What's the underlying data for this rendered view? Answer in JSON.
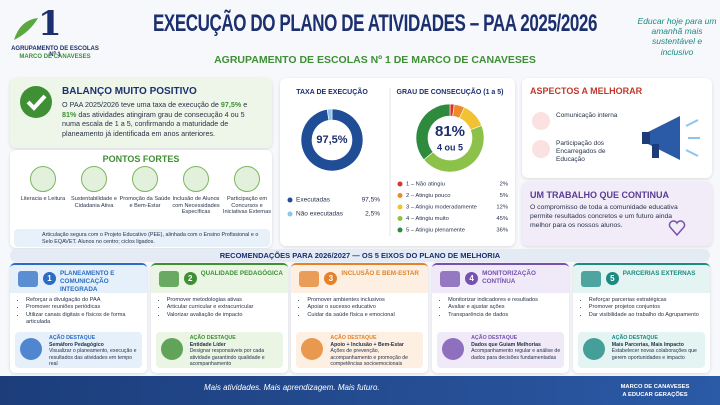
{
  "header": {
    "logo_number": "1",
    "logo_line1": "AGRUPAMENTO DE ESCOLAS Nº 1",
    "logo_line2": "MARCO DE CANAVESES",
    "title": "EXECUÇÃO DO PLANO DE ATIVIDADES – PAA 2025/2026",
    "subtitle": "AGRUPAMENTO DE ESCOLAS Nº 1 DE MARCO DE CANAVESES",
    "slogan": "Educar hoje para um amanhã mais sustentável e inclusivo"
  },
  "summary": {
    "title": "BALANÇO MUITO POSITIVO",
    "text": [
      "O PAA 2025/2026 teve uma taxa de execução de ",
      "97,5%",
      " e ",
      "81%",
      " das atividades atingiram grau de consecução 4 ou 5 numa escala de 1 a 5, confirmando a maturidade de planeamento já identificada em anos anteriores."
    ]
  },
  "strengths": {
    "title": "PONTOS FORTES",
    "items": [
      "Literacia e Leitura",
      "Sustentabilidade e Cidadania Ativa",
      "Promoção da Saúde e Bem-Estar",
      "Inclusão de Alunos com Necessidades Específicas",
      "Participação em Concursos e Iniciativas Externas"
    ],
    "note": "Articulação segura com o Projeto Educativo (PEE), alinhada com o Ensino Profissional e o Selo EQAVET. Alunos no centro; ciclos ligados."
  },
  "chart_data": [
    {
      "type": "pie",
      "title": "TAXA DE EXECUÇÃO",
      "categories": [
        "Executadas",
        "Não executadas"
      ],
      "values": [
        97.5,
        2.5
      ],
      "value_labels": [
        "97,5%",
        "2,5%"
      ],
      "colors": [
        "#1f4e96",
        "#8cc4ec"
      ]
    },
    {
      "type": "pie",
      "title": "GRAU DE CONSECUÇÃO (1 a 5)",
      "center_label": "81%",
      "center_sublabel": "4 ou 5",
      "categories": [
        "1 – Não atingiu",
        "2 – Atingiu pouco",
        "3 – Atingiu moderadamente",
        "4 – Atingiu muito",
        "5 – Atingiu plenamente"
      ],
      "values": [
        2,
        5,
        12,
        45,
        36
      ],
      "value_labels": [
        "2%",
        "5%",
        "12%",
        "45%",
        "36%"
      ],
      "colors": [
        "#d9342b",
        "#ef8a2a",
        "#f1c232",
        "#8cc24a",
        "#2e8b3e"
      ]
    }
  ],
  "improvements": {
    "title": "ASPECTOS A MELHORAR",
    "items": [
      "Comunicação interna",
      "Participação dos Encarregados de Educação"
    ]
  },
  "continuity": {
    "title": "UM TRABALHO QUE CONTINUA",
    "text": "O compromisso de toda a comunidade educativa permite resultados concretos e um futuro ainda melhor para os nossos alunos."
  },
  "recommendations": {
    "title": "RECOMENDAÇÕES PARA 2026/2027 — OS 5 EIXOS DO PLANO DE MELHORIA",
    "cards": [
      {
        "number": "1",
        "title": "PLANEAMENTO E COMUNICAÇÃO INTEGRADA",
        "color": "#2b6cc4",
        "bg": "#e6f0fb",
        "items": [
          "Reforçar a divulgação do PAA",
          "Promover reuniões periódicas",
          "Utilizar canais digitais e físicos de forma articulada"
        ],
        "action_label": "AÇÃO DESTAQUE",
        "action_title": "Semáforo Pedagógico",
        "action_text": "Visualizar o planeamento, execução e resultados das atividades em tempo real"
      },
      {
        "number": "2",
        "title": "QUALIDADE PEDAGÓGICA",
        "color": "#3f8f35",
        "bg": "#eaf5e4",
        "items": [
          "Promover metodologias ativas",
          "Articular curricular e extracurricular",
          "Valorizar avaliação de impacto"
        ],
        "action_label": "AÇÃO DESTAQUE",
        "action_title": "Entidade Líder",
        "action_text": "Designar responsáveis por cada atividade garantindo qualidade e acompanhamento"
      },
      {
        "number": "3",
        "title": "INCLUSÃO E BEM-ESTAR",
        "color": "#e3822a",
        "bg": "#fdf0e2",
        "items": [
          "Promover ambientes inclusivos",
          "Apoiar o sucesso educativo",
          "Cuidar da saúde física e emocional"
        ],
        "action_label": "AÇÃO DESTAQUE",
        "action_title": "Apoio + Inclusão + Bem-Estar",
        "action_text": "Ações de prevenção, acompanhamento e promoção de competências socioemocionais"
      },
      {
        "number": "4",
        "title": "MONITORIZAÇÃO CONTÍNUA",
        "color": "#7651b0",
        "bg": "#f0eaf8",
        "items": [
          "Monitorizar indicadores e resultados",
          "Avaliar e ajustar ações",
          "Transparência de dados"
        ],
        "action_label": "AÇÃO DESTAQUE",
        "action_title": "Dados que Guiam Melhorias",
        "action_text": "Acompanhamento regular e análise de dados para decisões fundamentadas"
      },
      {
        "number": "5",
        "title": "PARCERIAS EXTERNAS",
        "color": "#1c8a82",
        "bg": "#e3f4f2",
        "items": [
          "Reforçar parcerias estratégicas",
          "Promover projetos conjuntos",
          "Dar visibilidade ao trabalho do Agrupamento"
        ],
        "action_label": "AÇÃO DESTAQUE",
        "action_title": "Mais Parcerias, Mais Impacto",
        "action_text": "Estabelecer novas colaborações que gerem oportunidades e impacto"
      }
    ]
  },
  "footer": {
    "motto": "Mais atividades. Mais aprendizagem. Mais futuro.",
    "place_line1": "MARCO DE CANAVESES",
    "place_line2": "A EDUCAR GERAÇÕES"
  }
}
